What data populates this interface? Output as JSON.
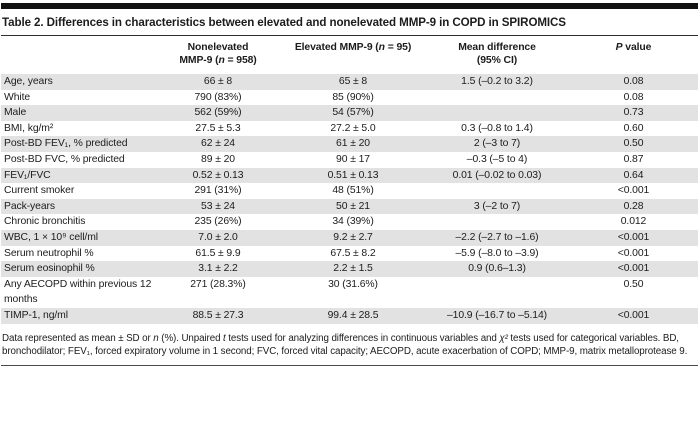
{
  "title": "Table 2. Differences in characteristics between elevated and nonelevated MMP-9 in COPD in SPIROMICS",
  "header": {
    "nonelevated": {
      "line1": "Nonelevated",
      "line2_pre": "MMP-9 (",
      "n": "n",
      "line2_post": " = 958)"
    },
    "elevated": {
      "pre": "Elevated MMP-9 (",
      "n": "n",
      "post": " = 95)"
    },
    "mean_difference": {
      "line1": "Mean difference",
      "line2": "(95% CI)"
    },
    "p_value": {
      "p": "P",
      "rest": " value"
    }
  },
  "table": {
    "rows": [
      {
        "label": "Age, years",
        "nonelevated": "66 ± 8",
        "elevated": "65 ± 8",
        "mean_difference": "1.5 (–0.2 to 3.2)",
        "p": "0.08"
      },
      {
        "label": "White",
        "nonelevated": "790 (83%)",
        "elevated": "85 (90%)",
        "mean_difference": "",
        "p": "0.08"
      },
      {
        "label": "Male",
        "nonelevated": "562 (59%)",
        "elevated": "54 (57%)",
        "mean_difference": "",
        "p": "0.73"
      },
      {
        "label": "BMI, kg/m²",
        "nonelevated": "27.5 ± 5.3",
        "elevated": "27.2 ± 5.0",
        "mean_difference": "0.3 (–0.8 to 1.4)",
        "p": "0.60"
      },
      {
        "label": "Post-BD FEV₁, % predicted",
        "nonelevated": "62 ± 24",
        "elevated": "61 ± 20",
        "mean_difference": "2 (–3 to 7)",
        "p": "0.50"
      },
      {
        "label": "Post-BD FVC, % predicted",
        "nonelevated": "89 ± 20",
        "elevated": "90 ± 17",
        "mean_difference": "–0.3 (–5 to 4)",
        "p": "0.87"
      },
      {
        "label": "FEV₁/FVC",
        "nonelevated": "0.52 ± 0.13",
        "elevated": "0.51 ± 0.13",
        "mean_difference": "0.01 (–0.02 to 0.03)",
        "p": "0.64"
      },
      {
        "label": "Current smoker",
        "nonelevated": "291 (31%)",
        "elevated": "48 (51%)",
        "mean_difference": "",
        "p": "<0.001"
      },
      {
        "label": "Pack-years",
        "nonelevated": "53 ± 24",
        "elevated": "50 ± 21",
        "mean_difference": "3 (–2 to 7)",
        "p": "0.28"
      },
      {
        "label": "Chronic bronchitis",
        "nonelevated": "235 (26%)",
        "elevated": "34 (39%)",
        "mean_difference": "",
        "p": "0.012"
      },
      {
        "label": "WBC, 1 × 10⁹ cell/ml",
        "nonelevated": "7.0 ± 2.0",
        "elevated": "9.2 ± 2.7",
        "mean_difference": "–2.2 (–2.7 to –1.6)",
        "p": "<0.001"
      },
      {
        "label": "Serum neutrophil %",
        "nonelevated": "61.5 ± 9.9",
        "elevated": "67.5 ± 8.2",
        "mean_difference": "–5.9 (–8.0 to –3.9)",
        "p": "<0.001"
      },
      {
        "label": "Serum eosinophil %",
        "nonelevated": "3.1 ± 2.2",
        "elevated": "2.2 ± 1.5",
        "mean_difference": "0.9 (0.6–1.3)",
        "p": "<0.001"
      },
      {
        "label": "Any AECOPD within previous 12 months",
        "nonelevated": "271 (28.3%)",
        "elevated": "30 (31.6%)",
        "mean_difference": "",
        "p": "0.50"
      },
      {
        "label": "TIMP-1, ng/ml",
        "nonelevated": "88.5 ± 27.3",
        "elevated": "99.4 ± 28.5",
        "mean_difference": "–10.9 (–16.7 to –5.14)",
        "p": "<0.001"
      }
    ]
  },
  "footnote_segments": [
    {
      "text": "Data represented as mean ± SD or ",
      "italic": false
    },
    {
      "text": "n",
      "italic": true
    },
    {
      "text": " (%). Unpaired ",
      "italic": false
    },
    {
      "text": "t",
      "italic": true
    },
    {
      "text": " tests used for analyzing differences in continuous variables and ",
      "italic": false
    },
    {
      "text": "χ²",
      "italic": true
    },
    {
      "text": " tests used for categorical variables. BD, bronchodilator; FEV₁, forced expiratory volume in 1 second; FVC, forced vital capacity; AECOPD, acute exacerbation of COPD; MMP-9, matrix metalloprotease 9.",
      "italic": false
    }
  ],
  "colors": {
    "row_shading": "#e2e2e2",
    "rule": "#2e2e2e",
    "text": "#1c1c1c"
  }
}
